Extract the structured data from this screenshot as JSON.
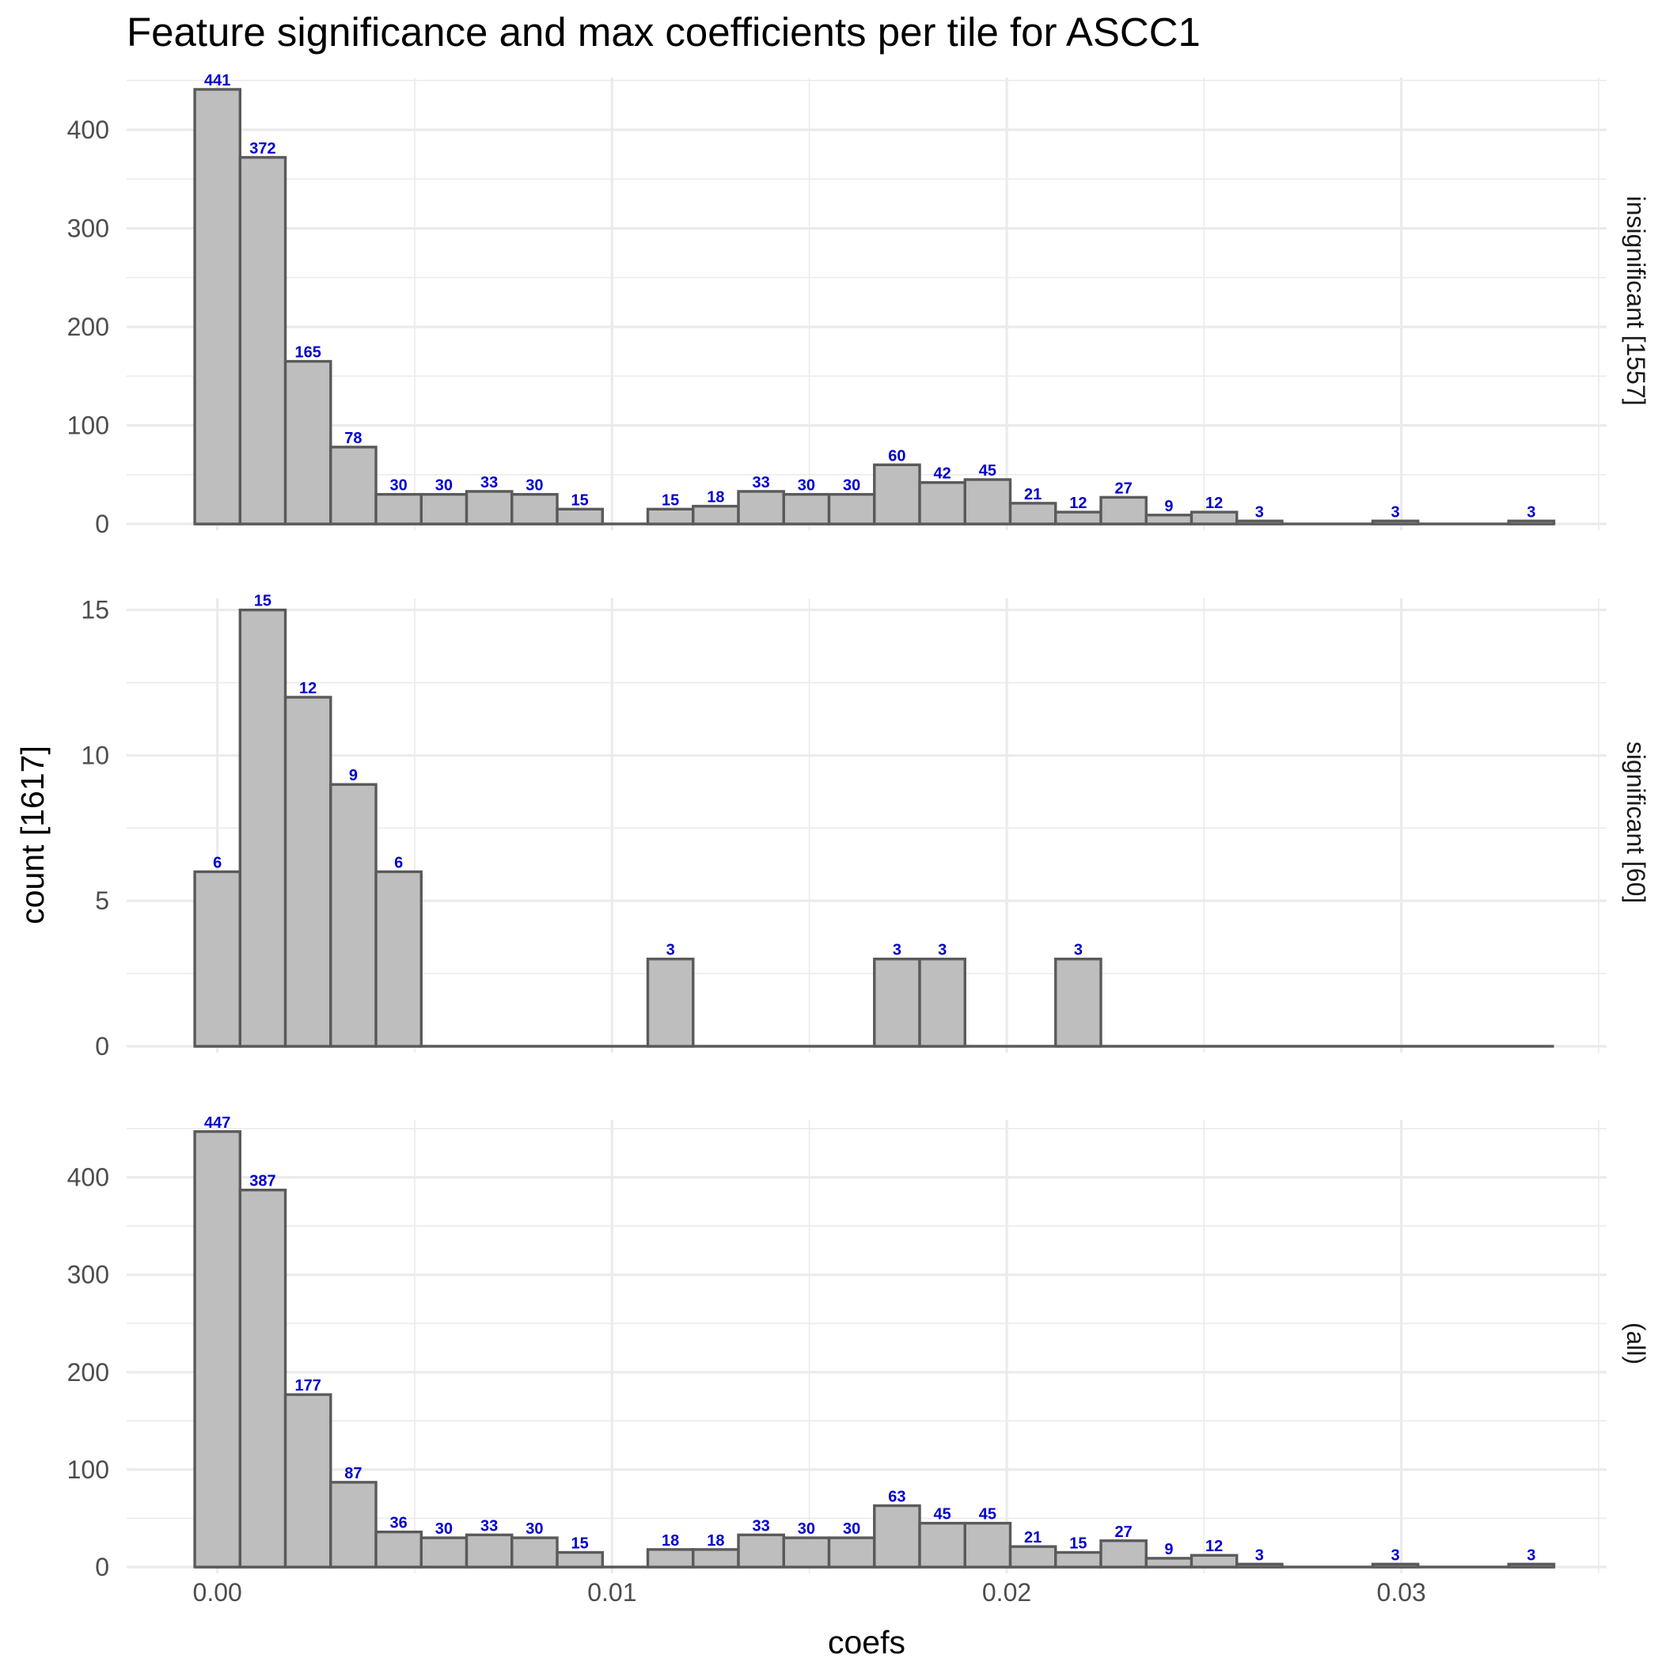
{
  "chart_data": {
    "type": "bar",
    "title": "Feature significance and max coefficients per tile for ASCC1",
    "xlabel": "coefs",
    "ylabel": "count [1617]",
    "xlim": [
      -0.0023,
      0.0352
    ],
    "x_ticks": [
      0.0,
      0.01,
      0.02,
      0.03
    ],
    "x_tick_labels": [
      "0.00",
      "0.01",
      "0.02",
      "0.03"
    ],
    "bin_width": 0.001148,
    "bin_start": -0.000574,
    "grid": true,
    "facet_labels_side": "right",
    "panels": [
      {
        "label": "insignificant [1557]",
        "ylim": [
          0,
          453
        ],
        "y_ticks": [
          0,
          100,
          200,
          300,
          400
        ],
        "y_tick_labels": [
          "0",
          "100",
          "200",
          "300",
          "400"
        ],
        "counts": [
          441,
          372,
          165,
          78,
          30,
          30,
          33,
          30,
          15,
          0,
          15,
          18,
          33,
          30,
          30,
          60,
          42,
          45,
          21,
          12,
          27,
          9,
          12,
          3,
          0,
          0,
          3,
          0,
          0,
          3
        ]
      },
      {
        "label": "significant [60]",
        "ylim": [
          0,
          15.4
        ],
        "y_ticks": [
          0,
          5,
          10,
          15
        ],
        "y_tick_labels": [
          "0",
          "5",
          "10",
          "15"
        ],
        "counts": [
          6,
          15,
          12,
          9,
          6,
          0,
          0,
          0,
          0,
          0,
          3,
          0,
          0,
          0,
          0,
          3,
          3,
          0,
          0,
          3,
          0,
          0,
          0,
          0,
          0,
          0,
          0,
          0,
          0,
          0
        ]
      },
      {
        "label": "(all)",
        "ylim": [
          0,
          459
        ],
        "y_ticks": [
          0,
          100,
          200,
          300,
          400
        ],
        "y_tick_labels": [
          "0",
          "100",
          "200",
          "300",
          "400"
        ],
        "counts": [
          447,
          387,
          177,
          87,
          36,
          30,
          33,
          30,
          15,
          0,
          18,
          18,
          33,
          30,
          30,
          63,
          45,
          45,
          21,
          15,
          27,
          9,
          12,
          3,
          0,
          0,
          3,
          0,
          0,
          3
        ]
      }
    ]
  }
}
